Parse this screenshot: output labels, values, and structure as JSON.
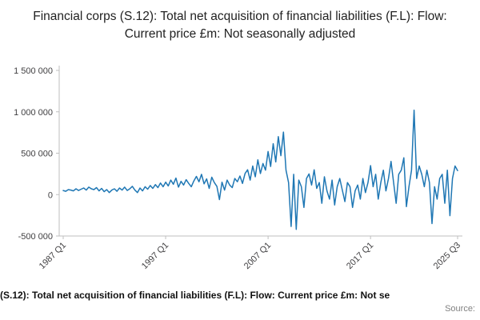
{
  "header": {
    "title": "Financial corps (S.12): Total net acquisition of financial liabilities (F.L): Flow: Current price £m: Not seasonally adjusted"
  },
  "footer": {
    "caption": "(S.12): Total net acquisition of financial liabilities (F.L): Flow: Current price £m: Not se",
    "source_label": "Source:"
  },
  "chart_data": {
    "type": "line",
    "title": "Financial corps (S.12): Total net acquisition of financial liabilities (F.L): Flow: Current price £m: Not seasonally adjusted",
    "xlabel": "",
    "ylabel": "",
    "ylim": [
      -500000,
      1500000
    ],
    "x_range": "1987 Q1 to 2025 Q3",
    "frequency": "quarterly",
    "grid": false,
    "line_color": "#1f77b4",
    "axis_color": "#bfbfbf",
    "y_ticks": [
      "1 500 000",
      "1 000 000",
      "500 000",
      "0",
      "-500 000"
    ],
    "y_tick_values": [
      1500000,
      1000000,
      500000,
      0,
      -500000
    ],
    "x_ticks": [
      {
        "label": "1987 Q1",
        "index": 0
      },
      {
        "label": "1997 Q1",
        "index": 40
      },
      {
        "label": "2007 Q1",
        "index": 80
      },
      {
        "label": "2017 Q1",
        "index": 120
      },
      {
        "label": "2025 Q3",
        "index": 154
      }
    ],
    "values": [
      50000,
      40000,
      60000,
      55000,
      45000,
      70000,
      50000,
      65000,
      80000,
      55000,
      90000,
      70000,
      60000,
      85000,
      45000,
      75000,
      35000,
      60000,
      25000,
      55000,
      70000,
      40000,
      80000,
      55000,
      90000,
      50000,
      70000,
      100000,
      55000,
      25000,
      80000,
      45000,
      95000,
      65000,
      110000,
      75000,
      120000,
      85000,
      140000,
      95000,
      150000,
      105000,
      175000,
      125000,
      200000,
      90000,
      160000,
      115000,
      180000,
      135000,
      95000,
      165000,
      220000,
      155000,
      245000,
      130000,
      190000,
      75000,
      210000,
      145000,
      100000,
      -60000,
      150000,
      55000,
      175000,
      115000,
      85000,
      195000,
      155000,
      225000,
      135000,
      255000,
      300000,
      175000,
      345000,
      215000,
      420000,
      255000,
      375000,
      295000,
      520000,
      340000,
      615000,
      395000,
      700000,
      470000,
      755000,
      295000,
      145000,
      -385000,
      245000,
      -420000,
      175000,
      95000,
      -155000,
      195000,
      250000,
      115000,
      300000,
      75000,
      145000,
      -105000,
      215000,
      45000,
      -55000,
      175000,
      -125000,
      95000,
      195000,
      55000,
      -85000,
      145000,
      95000,
      -155000,
      45000,
      115000,
      -55000,
      195000,
      25000,
      145000,
      350000,
      95000,
      245000,
      -55000,
      145000,
      295000,
      45000,
      195000,
      400000,
      145000,
      -105000,
      245000,
      295000,
      445000,
      -145000,
      95000,
      295000,
      1020000,
      195000,
      345000,
      245000,
      95000,
      295000,
      145000,
      -350000,
      95000,
      -55000,
      195000,
      245000,
      -105000,
      295000,
      -255000,
      195000,
      345000,
      290000
    ]
  }
}
